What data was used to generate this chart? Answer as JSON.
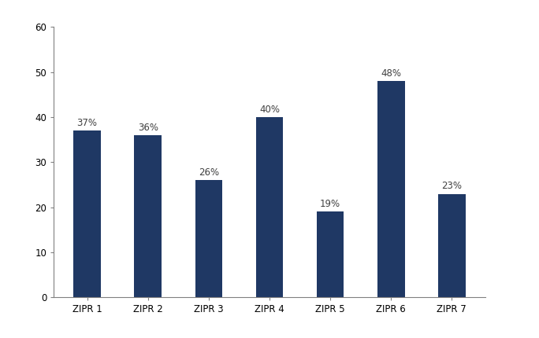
{
  "categories": [
    "ZIPR 1",
    "ZIPR 2",
    "ZIPR 3",
    "ZIPR 4",
    "ZIPR 5",
    "ZIPR 6",
    "ZIPR 7"
  ],
  "values": [
    37,
    36,
    26,
    40,
    19,
    48,
    23
  ],
  "labels": [
    "37%",
    "36%",
    "26%",
    "40%",
    "19%",
    "48%",
    "23%"
  ],
  "bar_color": "#1F3864",
  "label_color": "#404040",
  "background_color": "#ffffff",
  "ylim": [
    0,
    60
  ],
  "yticks": [
    0,
    10,
    20,
    30,
    40,
    50,
    60
  ],
  "bar_width": 0.45,
  "label_fontsize": 8.5,
  "tick_fontsize": 8.5,
  "spine_color": "#808080",
  "figsize": [
    6.84,
    4.3
  ],
  "dpi": 100
}
